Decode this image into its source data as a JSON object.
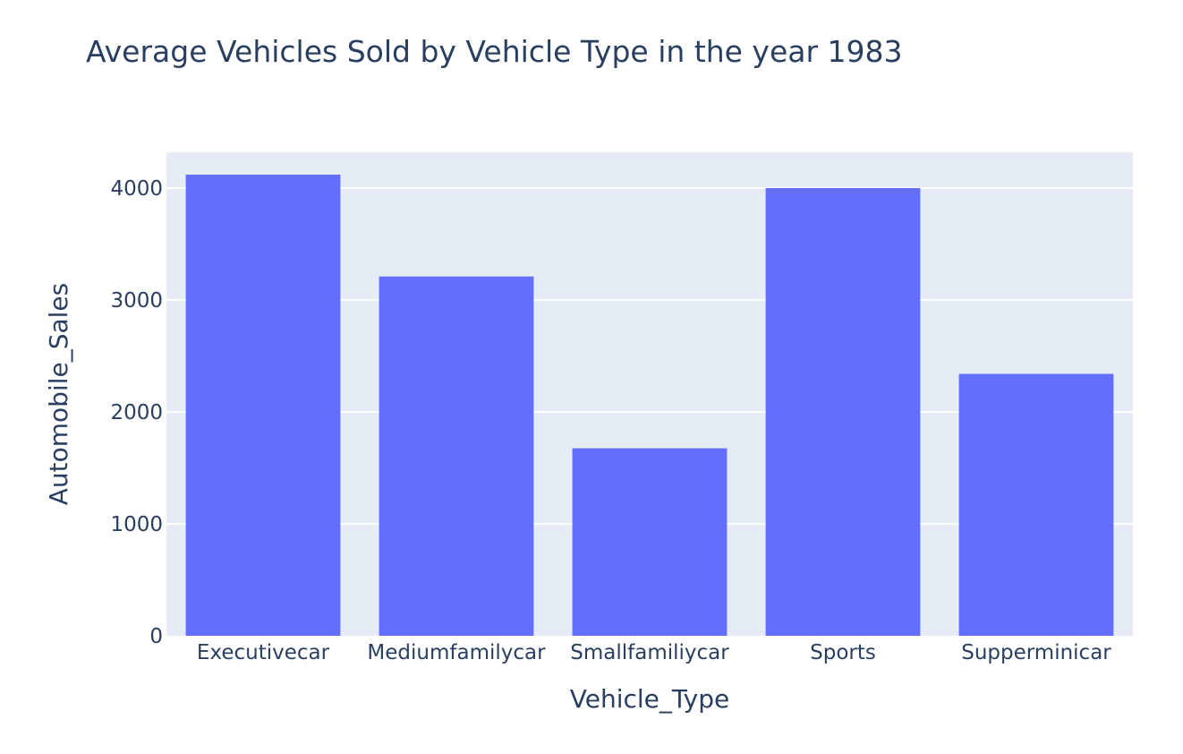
{
  "chart_data": {
    "type": "bar",
    "title": "Average Vehicles Sold by Vehicle Type in the year 1983",
    "xlabel": "Vehicle_Type",
    "ylabel": "Automobile_Sales",
    "categories": [
      "Executivecar",
      "Mediumfamilycar",
      "Smallfamiliycar",
      "Sports",
      "Supperminicar"
    ],
    "values": [
      4120,
      3210,
      1675,
      4000,
      2340
    ],
    "ylim": [
      0,
      4320
    ],
    "yticks": [
      0,
      1000,
      2000,
      3000,
      4000
    ],
    "grid": true,
    "colors": {
      "bar": "#636efa",
      "plot_bg": "#e5ecf6",
      "grid": "#ffffff",
      "text": "#2a3f5f"
    }
  }
}
